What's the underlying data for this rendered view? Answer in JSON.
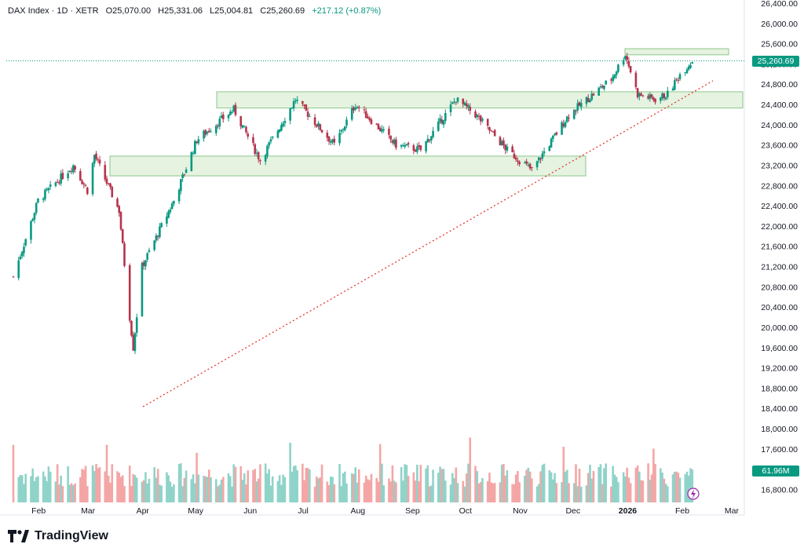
{
  "header": {
    "symbol": "DAX Index · 1D · XETR",
    "open": "O25,070.00",
    "high": "H25,331.06",
    "low": "L25,004.81",
    "close": "C25,260.69",
    "change": "+217.12 (+0.87%)"
  },
  "price_label": "25,260.69",
  "volume_label": "61.96M",
  "brand": "TradingView",
  "colors": {
    "up": "#089981",
    "down": "#b5344d",
    "zone": "#dff0d8",
    "trend": "#e53935",
    "volUp": "#8fd3c9",
    "volDown": "#f4a6a6"
  },
  "chart_data": {
    "type": "candlestick",
    "title": "DAX Index · 1D · XETR",
    "yticks": [
      "26,400.00",
      "26,000.00",
      "25,600.00",
      "25,200.00",
      "24,800.00",
      "24,400.00",
      "24,000.00",
      "23,600.00",
      "23,200.00",
      "22,800.00",
      "22,400.00",
      "22,000.00",
      "21,600.00",
      "21,200.00",
      "20,800.00",
      "20,400.00",
      "20,000.00",
      "19,600.00",
      "19,200.00",
      "18,800.00",
      "18,400.00",
      "18,000.00",
      "17,600.00",
      "17,200.00",
      "16,800.00"
    ],
    "xticks": [
      "Feb",
      "Mar",
      "Apr",
      "May",
      "Jun",
      "Jul",
      "Aug",
      "Sep",
      "Oct",
      "Nov",
      "Dec",
      "2026",
      "Feb",
      "Mar"
    ],
    "ylim": [
      16600,
      26500
    ],
    "last_price": 25260.69,
    "zones": [
      {
        "from": "May",
        "to": "Dec",
        "low": 22990,
        "high": 23380
      },
      {
        "from": "Jun",
        "to": "Mar",
        "low": 24330,
        "high": 24650
      },
      {
        "from": "Jan",
        "to": "Mar",
        "low": 25380,
        "high": 25500
      }
    ],
    "trendline": {
      "start": {
        "date": "Apr",
        "price": 18450
      },
      "end": {
        "date": "Feb",
        "price": 24860
      }
    },
    "series": [
      {
        "name": "price",
        "anchors": [
          [
            "2025-01-31",
            21000
          ],
          [
            "2025-02-14",
            22500
          ],
          [
            "2025-03-06",
            23200
          ],
          [
            "2025-03-14",
            22700
          ],
          [
            "2025-03-18",
            23400
          ],
          [
            "2025-04-01",
            22300
          ],
          [
            "2025-04-07",
            20200
          ],
          [
            "2025-04-09",
            19600
          ],
          [
            "2025-04-14",
            21200
          ],
          [
            "2025-05-02",
            22500
          ],
          [
            "2025-05-15",
            23700
          ],
          [
            "2025-06-05",
            24300
          ],
          [
            "2025-06-20",
            23300
          ],
          [
            "2025-07-10",
            24500
          ],
          [
            "2025-08-01",
            23600
          ],
          [
            "2025-08-13",
            24400
          ],
          [
            "2025-09-05",
            23600
          ],
          [
            "2025-09-19",
            23500
          ],
          [
            "2025-10-09",
            24500
          ],
          [
            "2025-10-20",
            24200
          ],
          [
            "2025-11-07",
            23500
          ],
          [
            "2025-11-21",
            23100
          ],
          [
            "2025-12-12",
            24200
          ],
          [
            "2026-01-05",
            24900
          ],
          [
            "2026-01-13",
            25400
          ],
          [
            "2026-01-20",
            24600
          ],
          [
            "2026-01-30",
            24500
          ],
          [
            "2026-02-06",
            24600
          ],
          [
            "2026-02-13",
            25000
          ],
          [
            "2026-02-20",
            25260
          ]
        ]
      }
    ],
    "volume_last": "61.96M"
  }
}
